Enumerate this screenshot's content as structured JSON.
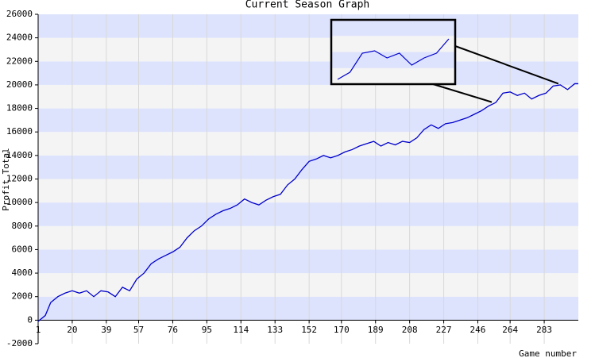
{
  "chart_data": {
    "type": "line",
    "title": "Current Season Graph",
    "x_label": "Game number",
    "y_label": "Profit Total",
    "x": [
      1,
      5,
      8,
      12,
      16,
      20,
      24,
      28,
      32,
      36,
      40,
      44,
      48,
      52,
      56,
      60,
      64,
      68,
      72,
      76,
      80,
      84,
      88,
      92,
      96,
      100,
      104,
      108,
      112,
      116,
      120,
      124,
      128,
      132,
      136,
      140,
      144,
      148,
      152,
      156,
      160,
      164,
      168,
      172,
      176,
      180,
      184,
      188,
      192,
      196,
      200,
      204,
      208,
      212,
      216,
      220,
      224,
      228,
      232,
      236,
      240,
      244,
      248,
      252,
      256,
      260,
      264,
      268,
      272,
      276,
      280,
      284,
      288,
      292,
      296,
      300,
      302
    ],
    "series": [
      {
        "name": "Profit Total",
        "color": "#0000cc",
        "values": [
          -100,
          400,
          1500,
          2000,
          2300,
          2500,
          2300,
          2500,
          2000,
          2500,
          2400,
          2000,
          2800,
          2500,
          3500,
          4000,
          4800,
          5200,
          5500,
          5800,
          6200,
          7000,
          7600,
          8000,
          8600,
          9000,
          9300,
          9500,
          9800,
          10300,
          10000,
          9800,
          10200,
          10500,
          10700,
          11500,
          12000,
          12800,
          13500,
          13700,
          14000,
          13800,
          14000,
          14300,
          14500,
          14800,
          15000,
          15200,
          14800,
          15100,
          14900,
          15200,
          15100,
          15500,
          16200,
          16600,
          16300,
          16700,
          16800,
          17000,
          17200,
          17500,
          17800,
          18200,
          18500,
          19300,
          19400,
          19100,
          19300,
          18800,
          19100,
          19300,
          19900,
          20000,
          19600,
          20100,
          20100
        ]
      }
    ],
    "xlim": [
      1,
      302
    ],
    "xticks": [
      1,
      20,
      39,
      57,
      76,
      95,
      114,
      133,
      152,
      170,
      189,
      208,
      227,
      246,
      264,
      283
    ],
    "ylim": [
      -2000,
      26000
    ],
    "yticks": [
      -2000,
      0,
      2000,
      4000,
      6000,
      8000,
      10000,
      12000,
      14000,
      16000,
      18000,
      20000,
      22000,
      24000,
      26000
    ],
    "grid": true,
    "zoom_range": [
      252,
      290
    ]
  }
}
